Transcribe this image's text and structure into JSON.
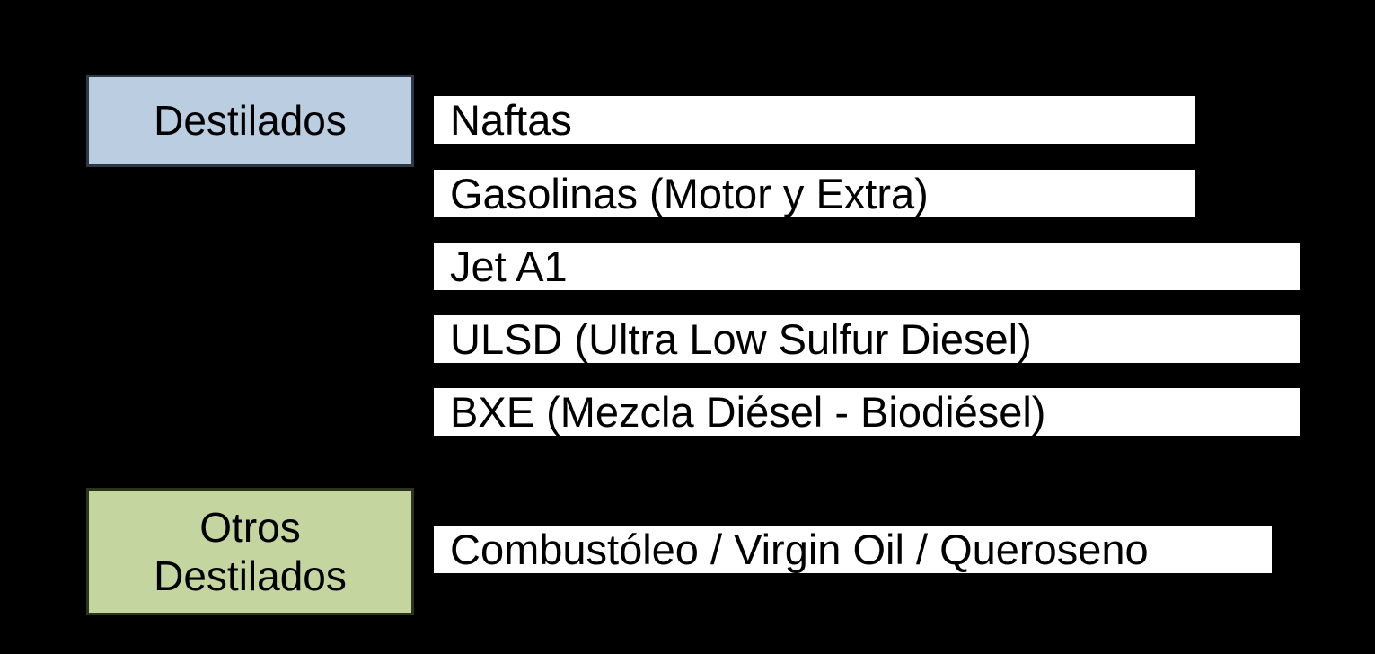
{
  "canvas": {
    "background": "#000000",
    "bar_fill": "#ffffff",
    "text_color": "#000000"
  },
  "groups": [
    {
      "label": "Destilados",
      "fill": "#bacde1",
      "border": "#2c3845",
      "items": [
        "Naftas",
        "Gasolinas (Motor y Extra)",
        "Jet A1",
        "ULSD (Ultra Low Sulfur Diesel)",
        "BXE (Mezcla Diésel - Biodiésel)"
      ]
    },
    {
      "label": "Otros Destilados",
      "fill": "#c5d5a0",
      "border": "#2a351c",
      "items": [
        "Combustóleo / Virgin Oil / Queroseno"
      ]
    }
  ]
}
